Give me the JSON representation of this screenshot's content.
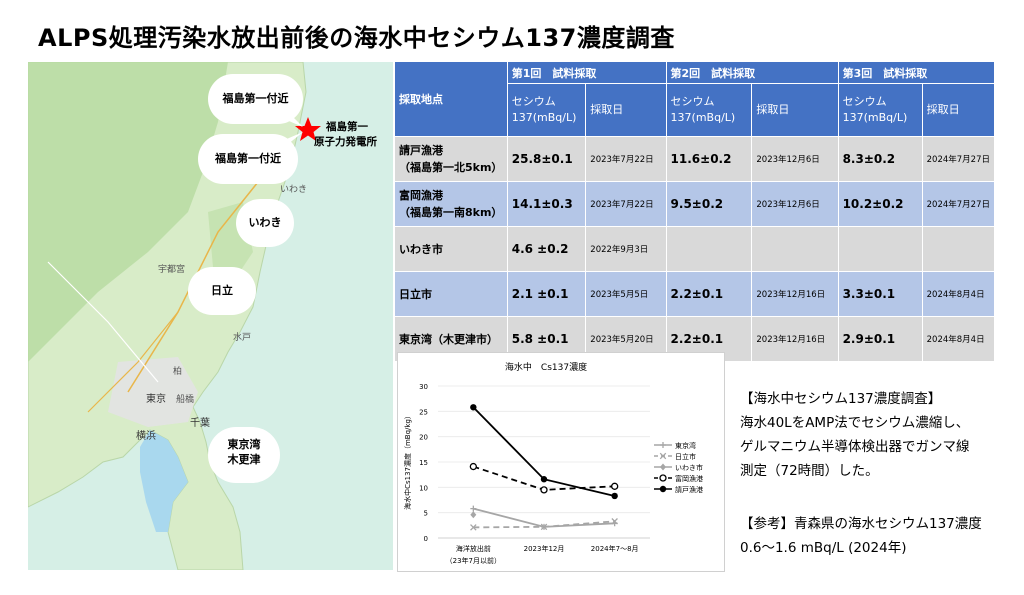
{
  "title": "ALPS処理汚染水放出前後の海水中セシウム137濃度調査",
  "map": {
    "callouts": [
      "福島第一付近",
      "福島第一付近",
      "いわき",
      "日立",
      "東京湾",
      "木更津"
    ],
    "plant_label_1": "福島第一",
    "plant_label_2": "原子力発電所",
    "place_labels": [
      "いわき",
      "水戸",
      "日立",
      "宇都宮",
      "東京",
      "横浜",
      "千葉",
      "柏",
      "船橋"
    ]
  },
  "table": {
    "header_location": "採取地点",
    "rounds": [
      "第1回　試料採取",
      "第2回　試料採取",
      "第3回　試料採取"
    ],
    "cs_label_1": "セシウム",
    "cs_label_2": "137(mBq/L)",
    "date_label": "採取日",
    "rows": [
      {
        "name1": "請戸漁港",
        "name2": "（福島第一北5km）",
        "v1": "25.8±0.1",
        "d1": "2023年7月22日",
        "v2": "11.6±0.2",
        "d2": "2023年12月6日",
        "v3": "8.3±0.2",
        "d3": "2024年7月27日"
      },
      {
        "name1": "富岡漁港",
        "name2": "（福島第一南8km）",
        "v1": "14.1±0.3",
        "d1": "2023年7月22日",
        "v2": "9.5±0.2",
        "d2": "2023年12月6日",
        "v3": "10.2±0.2",
        "d3": "2024年7月27日"
      },
      {
        "name1": "いわき市",
        "name2": "",
        "v1": "4.6 ±0.2",
        "d1": "2022年9月3日",
        "v2": "",
        "d2": "",
        "v3": "",
        "d3": ""
      },
      {
        "name1": "日立市",
        "name2": "",
        "v1": "2.1 ±0.1",
        "d1": "2023年5月5日",
        "v2": "2.2±0.1",
        "d2": "2023年12月16日",
        "v3": "3.3±0.1",
        "d3": "2024年8月4日"
      },
      {
        "name1": "東京湾（木更津市）",
        "name2": "",
        "v1": "5.8 ±0.1",
        "d1": "2023年5月20日",
        "v2": "2.2±0.1",
        "d2": "2023年12月16日",
        "v3": "2.9±0.1",
        "d3": "2024年8月4日"
      }
    ]
  },
  "chart_data": {
    "type": "line",
    "title": "海水中　Cs137濃度",
    "ylabel": "海水中Cs137濃度（mBq/kg）",
    "ylim": [
      0,
      30
    ],
    "yticks": [
      "0",
      "5",
      "10",
      "15",
      "20",
      "25",
      "30"
    ],
    "categories": [
      "海洋放出前",
      "2023年12月",
      "2024年7〜8月"
    ],
    "category_sub": "（23年7月以前）",
    "series": [
      {
        "name": "東京湾",
        "values": [
          5.8,
          2.2,
          2.9
        ],
        "color": "#a6a6a6",
        "marker": "cross",
        "dash": false
      },
      {
        "name": "日立市",
        "values": [
          2.1,
          2.2,
          3.3
        ],
        "color": "#a6a6a6",
        "marker": "xmark",
        "dash": true
      },
      {
        "name": "いわき市",
        "values": [
          4.6,
          null,
          null
        ],
        "color": "#a6a6a6",
        "marker": "diamond",
        "dash": false
      },
      {
        "name": "富岡漁港",
        "values": [
          14.1,
          9.5,
          10.2
        ],
        "color": "#000000",
        "marker": "open",
        "dash": true
      },
      {
        "name": "請戸漁港",
        "values": [
          25.8,
          11.6,
          8.3
        ],
        "color": "#000000",
        "marker": "filled",
        "dash": false
      }
    ]
  },
  "note": {
    "heading": "【海水中セシウム137濃度調査】",
    "line1": "海水40LをAMP法でセシウム濃縮し、",
    "line2": "ゲルマニウム半導体検出器でガンマ線",
    "line3": "測定（72時間）した。",
    "ref_heading": "【参考】青森県の海水セシウム137濃度",
    "ref_value": "0.6〜1.6 mBq/L (2024年)"
  }
}
